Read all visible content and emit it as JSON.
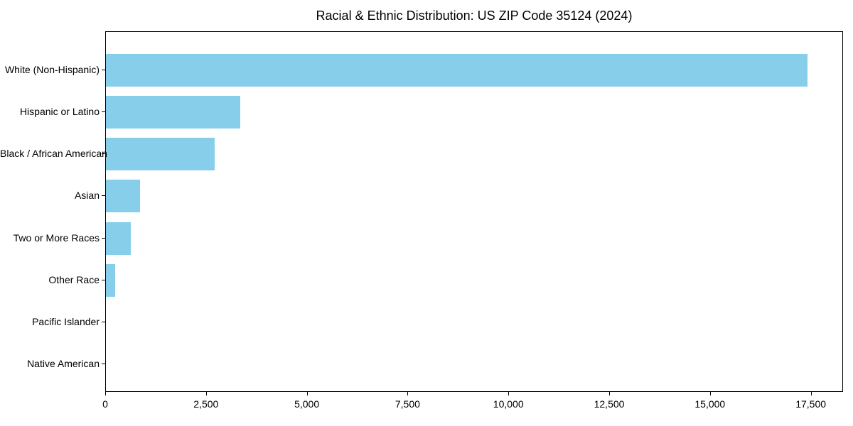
{
  "chart_data": {
    "type": "bar",
    "orientation": "horizontal",
    "title": "Racial & Ethnic Distribution: US ZIP Code 35124 (2024)",
    "categories": [
      "White (Non-Hispanic)",
      "Hispanic or Latino",
      "Black / African American",
      "Asian",
      "Two or More Races",
      "Other Race",
      "Pacific Islander",
      "Native American"
    ],
    "values": [
      17430,
      3330,
      2710,
      840,
      620,
      235,
      0,
      0
    ],
    "xlabel": "",
    "ylabel": "",
    "xlim": [
      0,
      18300
    ],
    "x_ticks": [
      {
        "value": 0,
        "label": "0"
      },
      {
        "value": 2500,
        "label": "2,500"
      },
      {
        "value": 5000,
        "label": "5,000"
      },
      {
        "value": 7500,
        "label": "7,500"
      },
      {
        "value": 10000,
        "label": "10,000"
      },
      {
        "value": 12500,
        "label": "12,500"
      },
      {
        "value": 15000,
        "label": "15,000"
      },
      {
        "value": 17500,
        "label": "17,500"
      }
    ],
    "bar_color": "#87CEEB",
    "grid": false,
    "legend": null
  }
}
